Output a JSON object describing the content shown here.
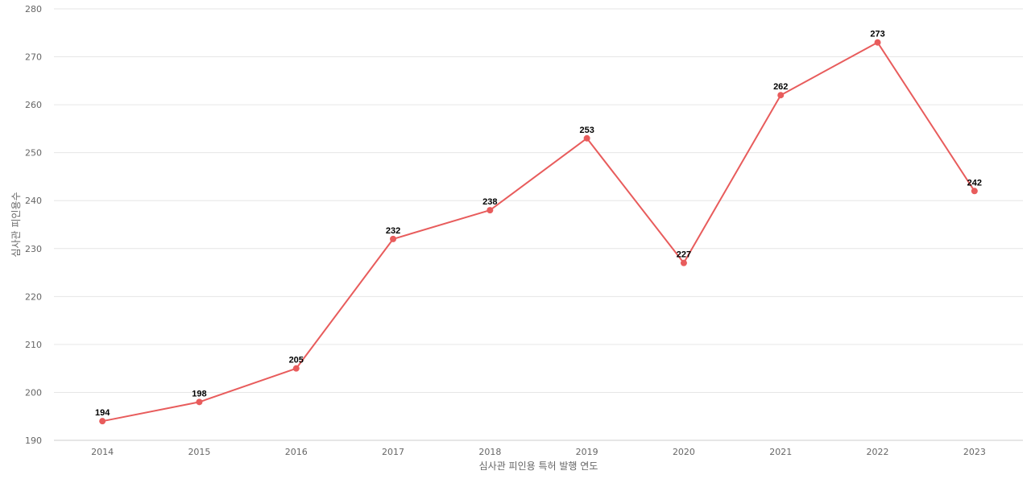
{
  "chart_data": {
    "type": "line",
    "title": "",
    "xlabel": "심사관 피인용 특허 발행 연도",
    "ylabel": "심사관 피인용수",
    "categories": [
      "2014",
      "2015",
      "2016",
      "2017",
      "2018",
      "2019",
      "2020",
      "2021",
      "2022",
      "2023"
    ],
    "series": [
      {
        "values": [
          194,
          198,
          205,
          232,
          238,
          253,
          227,
          262,
          273,
          242
        ],
        "color": "#e85c5c"
      }
    ],
    "ylim": [
      190,
      280
    ],
    "yticks": [
      190,
      200,
      210,
      220,
      230,
      240,
      250,
      260,
      270,
      280
    ],
    "grid": true,
    "legend": "none",
    "data_labels": true
  }
}
